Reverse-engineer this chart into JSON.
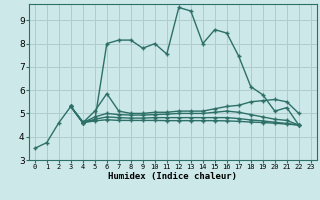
{
  "xlabel": "Humidex (Indice chaleur)",
  "x_ticks": [
    0,
    1,
    2,
    3,
    4,
    5,
    6,
    7,
    8,
    9,
    10,
    11,
    12,
    13,
    14,
    15,
    16,
    17,
    18,
    19,
    20,
    21,
    22,
    23
  ],
  "ylim": [
    3.0,
    9.7
  ],
  "xlim": [
    -0.5,
    23.5
  ],
  "yticks": [
    3,
    4,
    5,
    6,
    7,
    8,
    9
  ],
  "background_color": "#cce8e8",
  "grid_color": "#b0cccc",
  "line_color": "#2d7068",
  "line_width": 1.0,
  "marker": "+",
  "markersize": 3.5,
  "markeredgewidth": 1.0,
  "lines": [
    [
      3.5,
      3.75,
      4.6,
      5.3,
      4.65,
      4.7,
      8.0,
      8.15,
      8.15,
      7.8,
      8.0,
      7.55,
      9.55,
      9.4,
      8.0,
      8.6,
      8.45,
      7.45,
      6.15,
      5.8,
      5.1,
      5.25,
      4.5,
      null
    ],
    [
      null,
      null,
      null,
      5.3,
      4.6,
      5.1,
      5.85,
      5.1,
      5.0,
      5.0,
      5.05,
      5.05,
      5.1,
      5.1,
      5.1,
      5.2,
      5.3,
      5.35,
      5.5,
      5.55,
      5.6,
      5.5,
      5.0,
      null
    ],
    [
      null,
      null,
      null,
      5.3,
      4.6,
      4.85,
      5.0,
      4.95,
      4.93,
      4.93,
      4.95,
      4.97,
      5.0,
      5.0,
      5.0,
      5.05,
      5.1,
      5.05,
      4.95,
      4.85,
      4.75,
      4.7,
      4.5,
      null
    ],
    [
      null,
      null,
      null,
      5.3,
      4.6,
      4.75,
      4.85,
      4.82,
      4.8,
      4.8,
      4.82,
      4.82,
      4.82,
      4.82,
      4.82,
      4.82,
      4.82,
      4.78,
      4.72,
      4.68,
      4.62,
      4.57,
      4.5,
      null
    ],
    [
      null,
      null,
      null,
      5.3,
      4.6,
      4.68,
      4.73,
      4.7,
      4.7,
      4.7,
      4.7,
      4.69,
      4.69,
      4.69,
      4.69,
      4.69,
      4.68,
      4.66,
      4.63,
      4.61,
      4.58,
      4.54,
      4.5,
      null
    ]
  ]
}
